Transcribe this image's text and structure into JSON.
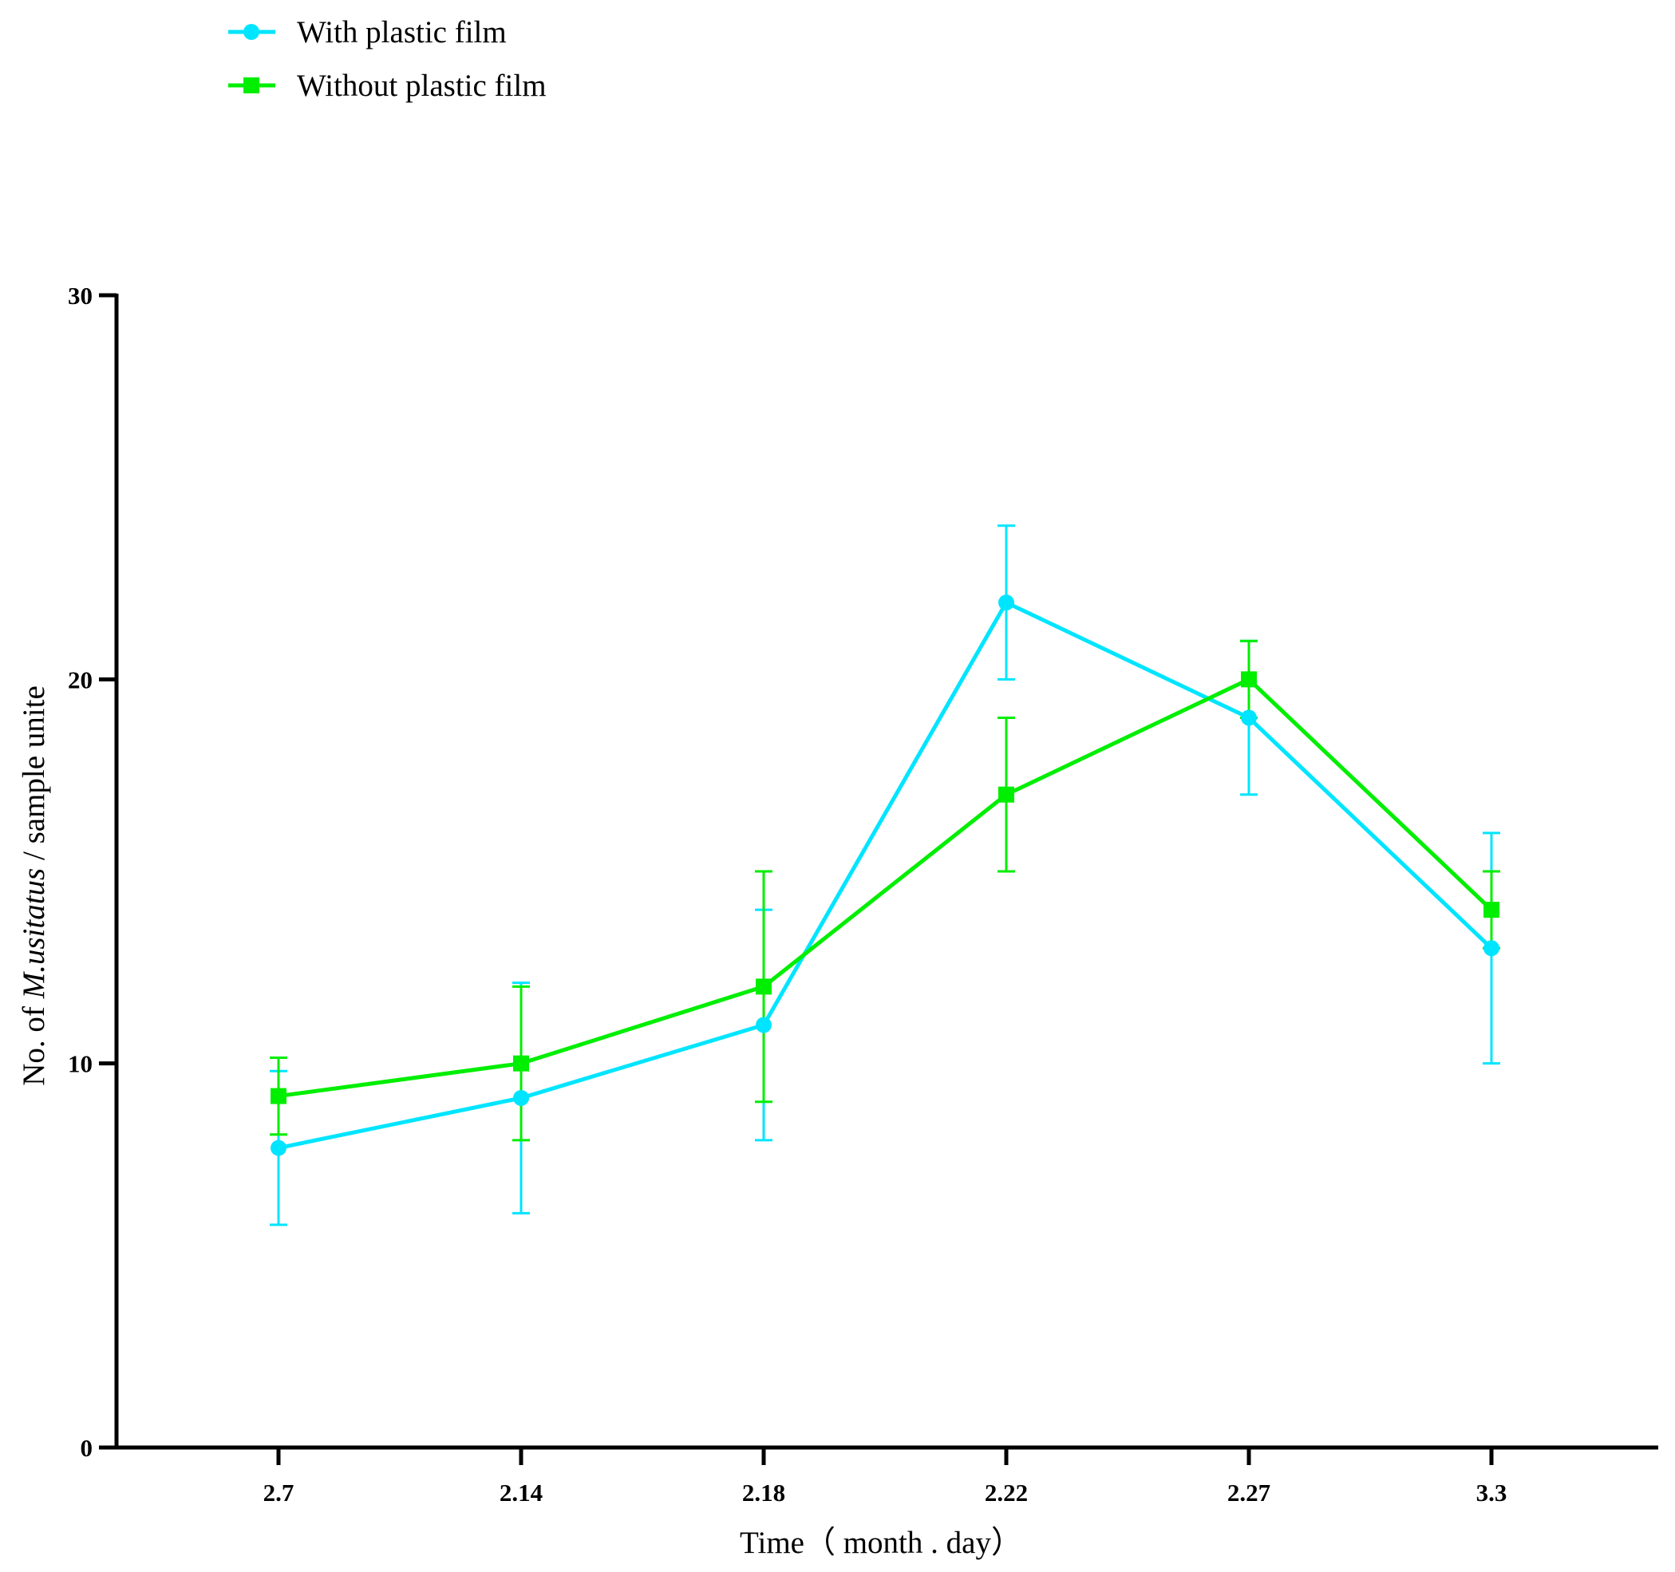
{
  "chart_data": {
    "type": "line",
    "title": "",
    "xlabel": "Time（ month . day）",
    "ylabel_prefix": "No. of ",
    "ylabel_species": "M.usitatus",
    "ylabel_suffix": " / sample unite",
    "categories": [
      "2.7",
      "2.14",
      "2.18",
      "2.22",
      "2.27",
      "3.3"
    ],
    "ylim": [
      0,
      30
    ],
    "yticks": [
      0,
      10,
      20,
      30
    ],
    "grid": false,
    "legend_position": "top-left",
    "series": [
      {
        "name": "With plastic film",
        "color": "#00e5ff",
        "marker": "circle",
        "values": [
          7.8,
          9.1,
          11.0,
          22.0,
          19.0,
          13.0
        ],
        "err_low": [
          5.8,
          6.1,
          8.0,
          20.0,
          17.0,
          10.0
        ],
        "err_high": [
          9.8,
          12.1,
          14.0,
          24.0,
          21.0,
          16.0
        ]
      },
      {
        "name": "Without plastic film",
        "color": "#00ee00",
        "marker": "square",
        "values": [
          9.15,
          10.0,
          12.0,
          17.0,
          20.0,
          14.0
        ],
        "err_low": [
          8.15,
          8.0,
          9.0,
          15.0,
          19.0,
          13.0
        ],
        "err_high": [
          10.15,
          12.0,
          15.0,
          19.0,
          21.0,
          15.0
        ]
      }
    ]
  }
}
